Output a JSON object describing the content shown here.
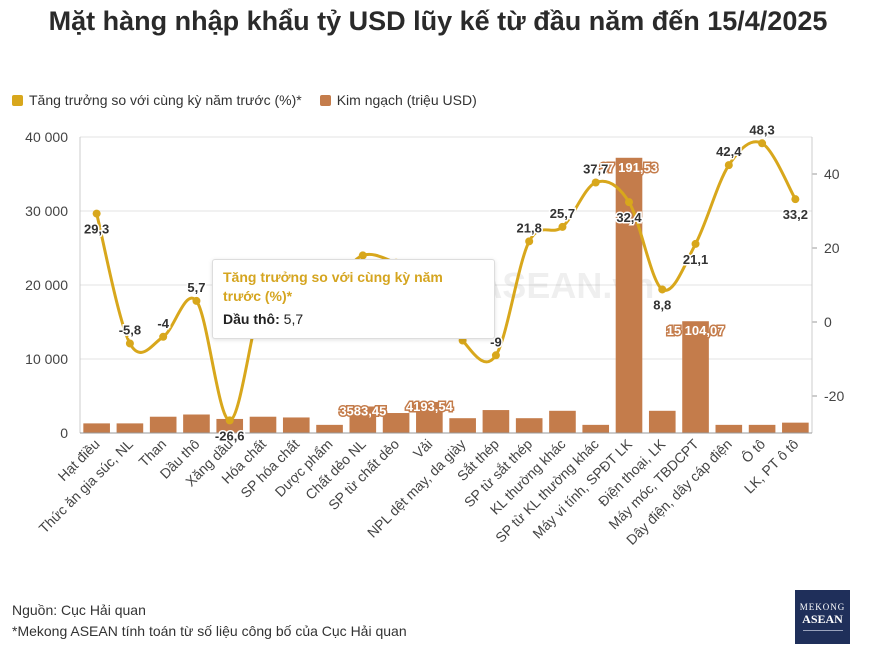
{
  "title": "Mặt hàng nhập khẩu tỷ USD lũy kế từ đầu năm đến 15/4/2025",
  "legend": {
    "growth": "Tăng trưởng so với cùng kỳ năm trước (%)*",
    "value": "Kim ngạch (triệu USD)"
  },
  "colors": {
    "growth": "#d8a71c",
    "value": "#c47c4b",
    "grid": "#e3e3e3"
  },
  "watermark": "MEKONG ASEAN.vn",
  "tooltip": {
    "title": "Tăng trưởng so với cùng kỳ năm trước (%)*",
    "label": "Dầu thô:",
    "value": "5,7"
  },
  "source": {
    "line1": "Nguồn: Cục Hải quan",
    "line2": "*Mekong ASEAN tính toán từ số liệu công bố của Cục Hải quan"
  },
  "logo": {
    "top": "MEKONG",
    "bottom": "ASEAN"
  },
  "chart_data": {
    "type": "bar",
    "categories": [
      "Hạt điều",
      "Thức ăn gia súc, NL",
      "Than",
      "Dầu thô",
      "Xăng dầu",
      "Hóa chất",
      "SP hóa chất",
      "Dược phẩm",
      "Chất dẻo NL",
      "SP từ chất dẻo",
      "Vải",
      "NPL dệt may, da giày",
      "Sắt thép",
      "SP từ sắt thép",
      "KL thường khác",
      "SP từ KL thường khác",
      "Máy vi tính, SPĐT LK",
      "Điện thoại, LK",
      "Máy móc, TBDCPT",
      "Dây điện, dây cáp điện",
      "Ô tô",
      "LK, PT ô tô"
    ],
    "series": [
      {
        "name": "Kim ngạch (triệu USD)",
        "type": "bar",
        "axis": "left",
        "values": [
          1300,
          1300,
          2200,
          2500,
          1900,
          2200,
          2100,
          1100,
          3583.45,
          2700,
          4193.54,
          2000,
          3100,
          2000,
          3000,
          1100,
          37191.53,
          3000,
          15104.07,
          1100,
          1100,
          1400
        ],
        "labels": [
          "",
          "",
          "",
          "",
          "",
          "",
          "",
          "",
          "3583,45",
          "",
          "4193,54",
          "",
          "",
          "",
          "",
          "",
          "37 191,53",
          "",
          "15 104,07",
          "",
          "",
          ""
        ]
      },
      {
        "name": "Tăng trưởng so với cùng kỳ năm trước (%)*",
        "type": "line",
        "axis": "right",
        "values": [
          29.3,
          -5.8,
          -4,
          5.7,
          -26.6,
          7,
          12,
          10,
          18,
          16,
          12,
          -5,
          -9,
          21.8,
          25.7,
          37.7,
          32.4,
          8.8,
          21.1,
          42.4,
          48.3,
          33.2
        ],
        "labels": [
          "29,3",
          "-5,8",
          "-4",
          "5,7",
          "-26,6",
          "",
          "",
          "",
          "",
          "",
          "",
          "",
          "-9",
          "21,8",
          "25,7",
          "37,7",
          "32,4",
          "8,8",
          "21,1",
          "42,4",
          "48,3",
          "33,2"
        ]
      }
    ],
    "y_left": {
      "min": 0,
      "max": 40000,
      "ticks": [
        0,
        10000,
        20000,
        30000,
        40000
      ],
      "tick_labels": [
        "0",
        "10 000",
        "20 000",
        "30 000",
        "40 000"
      ]
    },
    "y_right": {
      "min": -30,
      "max": 50,
      "ticks": [
        -20,
        0,
        20,
        40
      ],
      "tick_labels": [
        "-20",
        "0",
        "20",
        "40"
      ]
    },
    "grid": true,
    "legend_position": "top-left"
  }
}
